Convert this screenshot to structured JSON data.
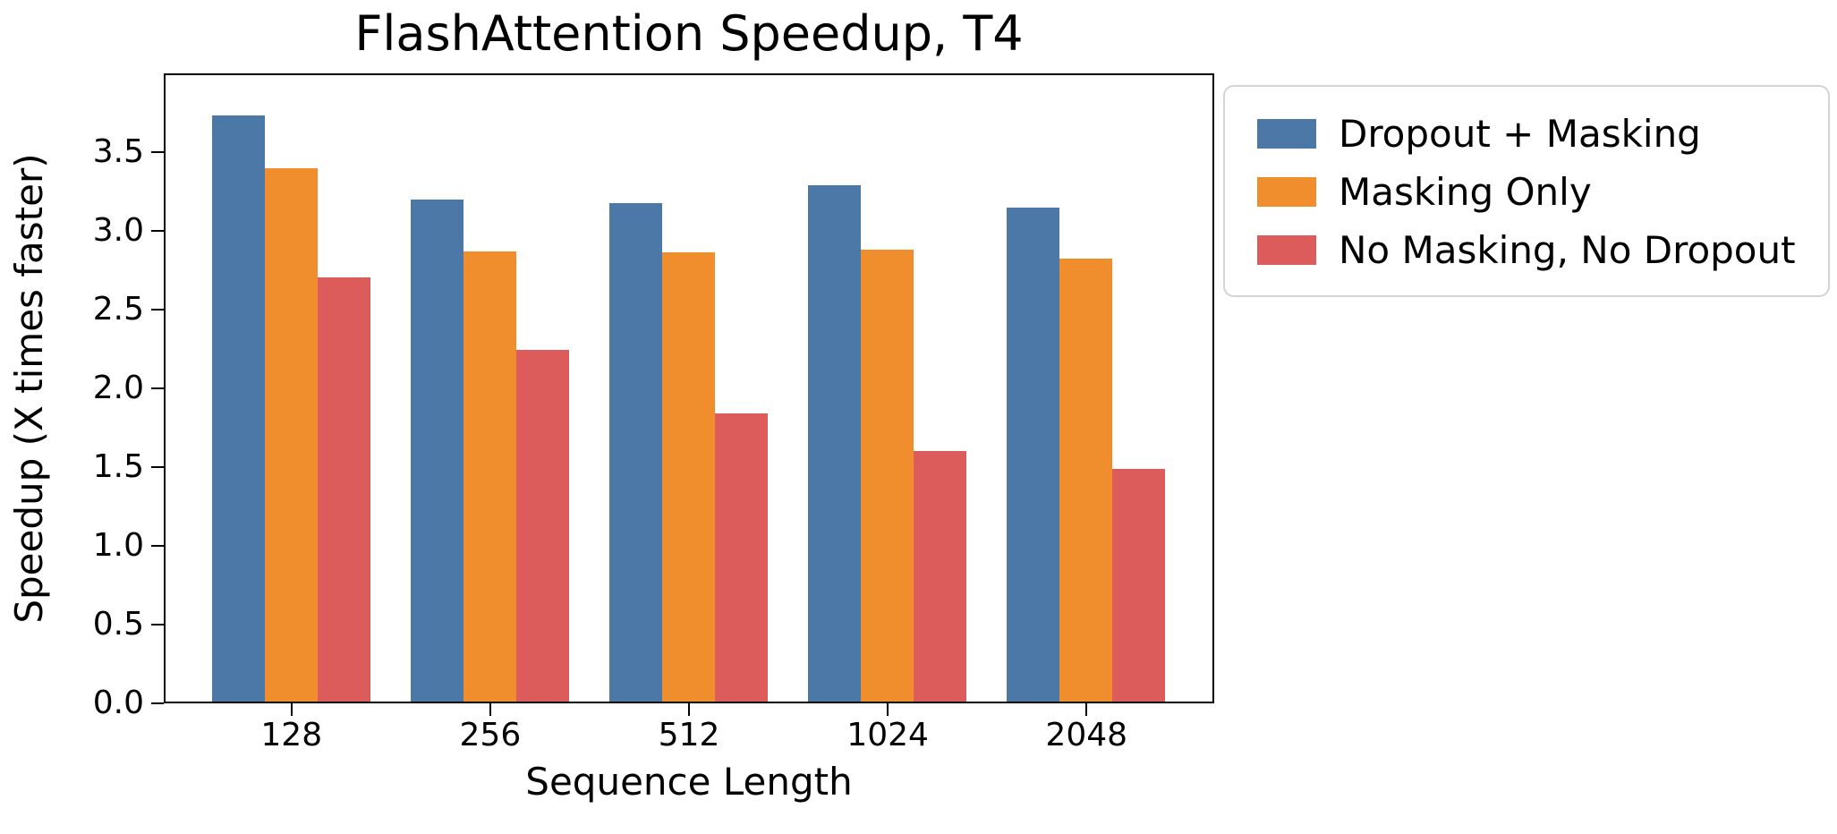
{
  "figure": {
    "background": "#ffffff"
  },
  "chart_data": {
    "type": "bar",
    "title": "FlashAttention Speedup, T4",
    "xlabel": "Sequence Length",
    "ylabel": "Speedup (X times faster)",
    "categories": [
      "128",
      "256",
      "512",
      "1024",
      "2048"
    ],
    "series": [
      {
        "name": "Dropout + Masking",
        "color": "#4C78A8",
        "values": [
          3.75,
          3.21,
          3.19,
          3.3,
          3.16
        ]
      },
      {
        "name": "Masking Only",
        "color": "#F08E2E",
        "values": [
          3.41,
          2.88,
          2.87,
          2.89,
          2.83
        ]
      },
      {
        "name": "No Masking, No Dropout",
        "color": "#DC5C5C",
        "values": [
          2.71,
          2.25,
          1.84,
          1.6,
          1.49
        ]
      }
    ],
    "ylim": [
      0,
      4.0
    ],
    "yticks": [
      "0.0",
      "0.5",
      "1.0",
      "1.5",
      "2.0",
      "2.5",
      "3.0",
      "3.5"
    ],
    "grid": false,
    "legend_position": "upper-right-outside",
    "bar_gap_note": "3 grouped bars per category, no gap within group"
  },
  "style": {
    "axis_color": "#000000",
    "text_color": "#000000",
    "legend_border_color": "#d3d3d3"
  }
}
